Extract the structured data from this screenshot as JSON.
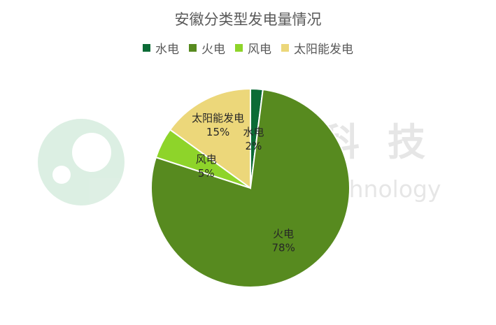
{
  "chart_data": {
    "type": "pie",
    "title": "安徽分类型发电量情况",
    "legend_position": "top",
    "series": [
      {
        "name": "水电",
        "value": 2,
        "label": "2%",
        "color": "#0b6b36"
      },
      {
        "name": "火电",
        "value": 78,
        "label": "78%",
        "color": "#578a1f"
      },
      {
        "name": "风电",
        "value": 5,
        "label": "5%",
        "color": "#8ed42a"
      },
      {
        "name": "太阳能发电",
        "value": 15,
        "label": "15%",
        "color": "#ecd77a"
      }
    ]
  },
  "watermark": {
    "text": "前瞻科技",
    "subtext": "Qianzhan Technology"
  }
}
